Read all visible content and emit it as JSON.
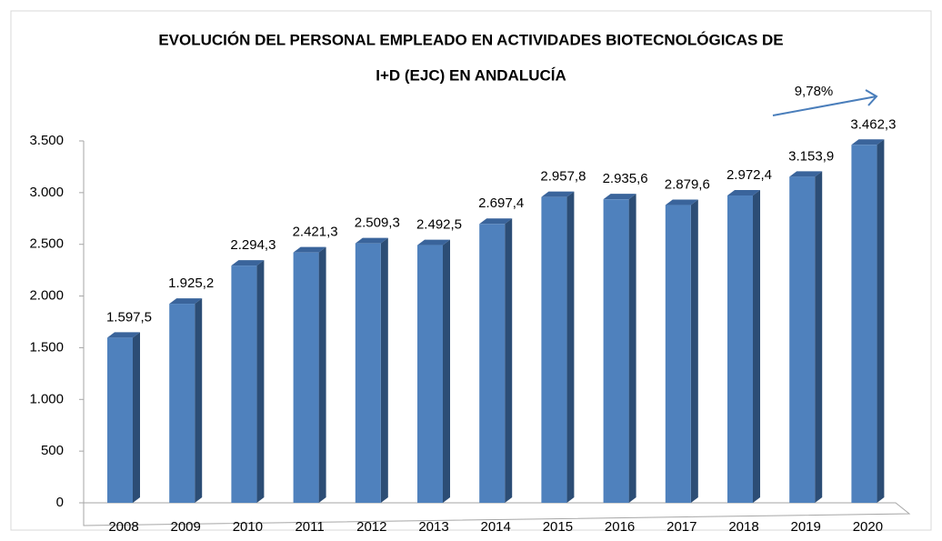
{
  "chart_data": {
    "type": "bar3d",
    "title": [
      "EVOLUCIÓN DEL PERSONAL EMPLEADO EN ACTIVIDADES BIOTECNOLÓGICAS  DE",
      "I+D (EJC) EN ANDALUCÍA"
    ],
    "categories": [
      "2008",
      "2009",
      "2010",
      "2011",
      "2012",
      "2013",
      "2014",
      "2015",
      "2016",
      "2017",
      "2018",
      "2019",
      "2020"
    ],
    "values": [
      1597.5,
      1925.2,
      2294.3,
      2421.3,
      2509.3,
      2492.5,
      2697.4,
      2957.8,
      2935.6,
      2879.6,
      2972.4,
      3153.9,
      3462.3
    ],
    "value_labels": [
      "1.597,5",
      "1.925,2",
      "2.294,3",
      "2.421,3",
      "2.509,3",
      "2.492,5",
      "2.697,4",
      "2.957,8",
      "2.935,6",
      "2.879,6",
      "2.972,4",
      "3.153,9",
      "3.462,3"
    ],
    "color": "#4f81bd",
    "ylim": [
      0,
      3500
    ],
    "yticks": [
      0,
      500,
      {
        "value": 1000,
        "label": "1.000"
      },
      {
        "value": 1500,
        "label": "1.500"
      },
      {
        "value": 2000,
        "label": "2.000"
      },
      {
        "value": 2500,
        "label": "2.500"
      },
      {
        "value": 3000,
        "label": "3.000"
      },
      {
        "value": 3500,
        "label": "3.500"
      }
    ],
    "annotation": "9,78%",
    "grid": false
  }
}
